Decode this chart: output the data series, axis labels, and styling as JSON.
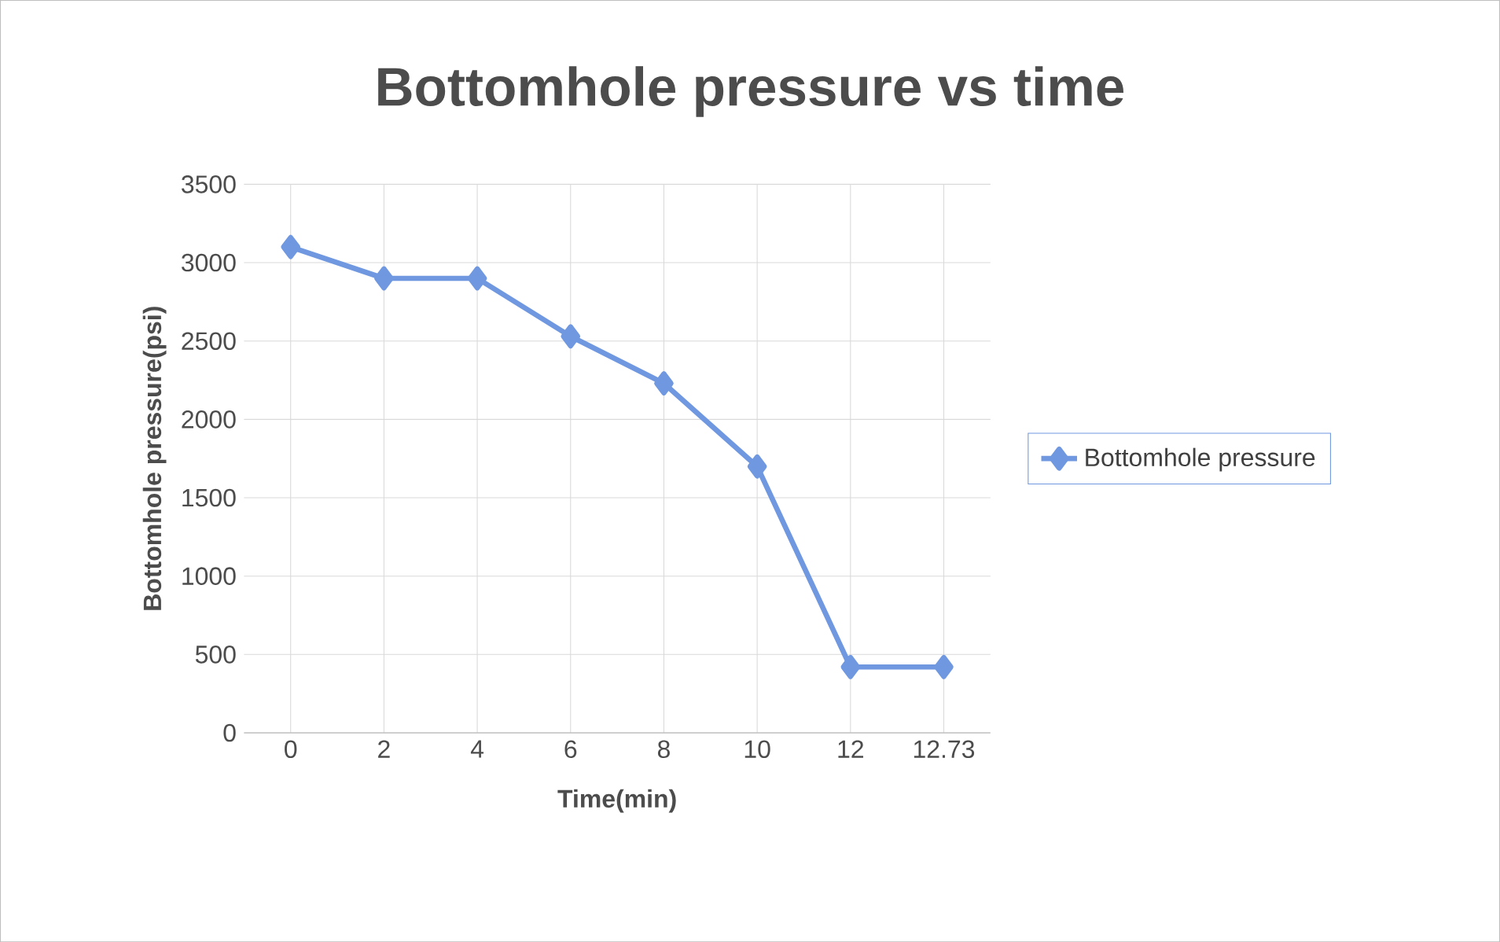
{
  "chart_data": {
    "type": "line",
    "title": "Bottomhole pressure vs time",
    "xlabel": "Time(min)",
    "ylabel": "Bottomhole pressure(psi)",
    "categories": [
      "0",
      "2",
      "4",
      "6",
      "8",
      "10",
      "12",
      "12.73"
    ],
    "series": [
      {
        "name": "Bottomhole pressure",
        "color": "#6f98e0",
        "values": [
          3100,
          2900,
          2900,
          2530,
          2230,
          1700,
          420,
          420
        ]
      }
    ],
    "ylim": [
      0,
      3500
    ],
    "yticks": [
      0,
      500,
      1000,
      1500,
      2000,
      2500,
      3000,
      3500
    ],
    "grid": true,
    "legend": "right",
    "marker": "diamond",
    "line_style": "solid"
  }
}
